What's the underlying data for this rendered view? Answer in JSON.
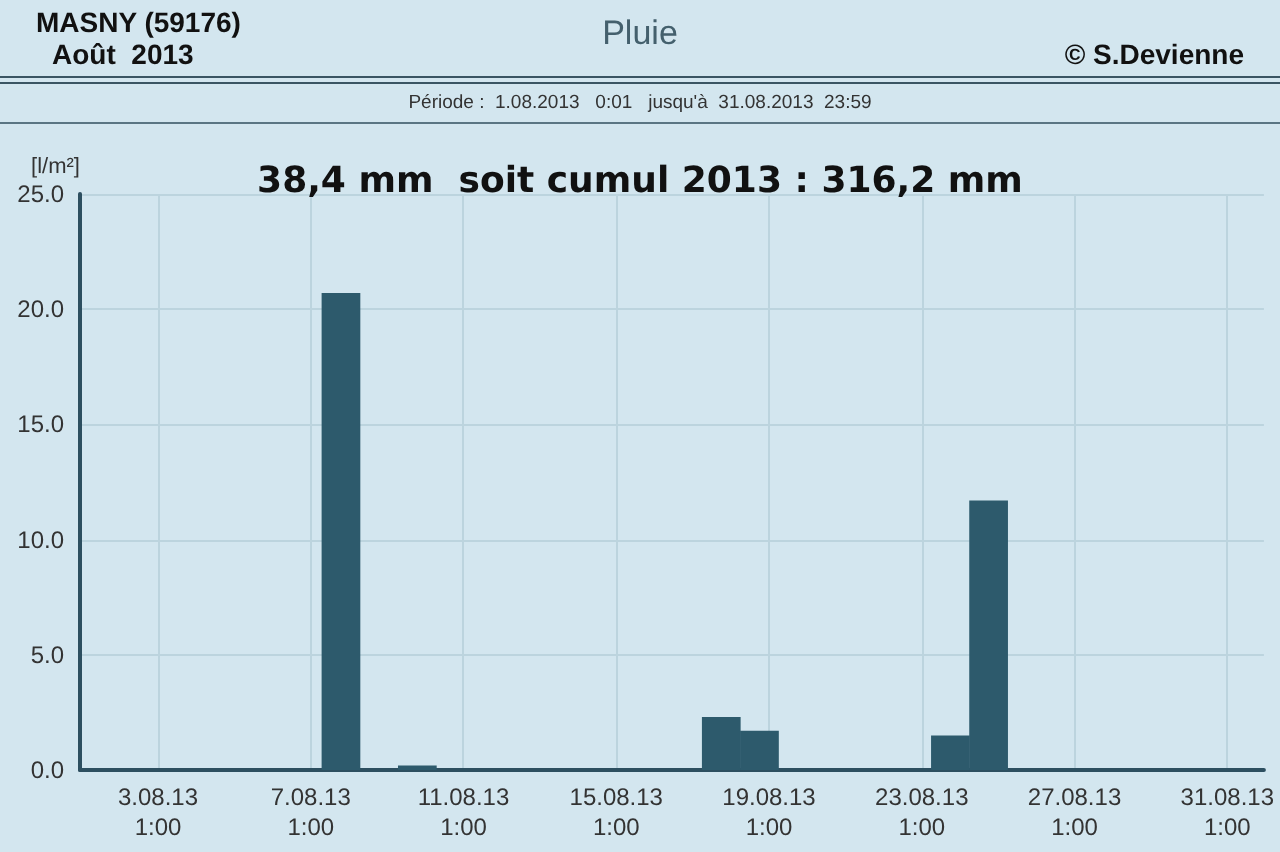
{
  "chart_data": {
    "type": "bar",
    "title": "Pluie",
    "annotations": [
      "MASNY (59176)",
      "Août  2013",
      "© S.Devienne",
      "Période :  1.08.2013   0:01   jusqu'à  31.08.2013  23:59",
      "38,4 mm  soit cumul 2013 : 316,2 mm"
    ],
    "ylabel": "[l/m²]",
    "x": [
      "2013-08-07T20:00",
      "2013-08-09T20:00",
      "2013-08-17T19:00",
      "2013-08-18T19:00",
      "2013-08-23T19:00",
      "2013-08-24T19:00"
    ],
    "values": [
      20.7,
      0.2,
      2.3,
      1.7,
      1.5,
      11.7
    ],
    "color": "#2d5a6c",
    "xlim": [
      "2013-08-01T00:00",
      "2013-09-01T00:00"
    ],
    "xticks": [
      {
        "value": "2013-08-03T01:00",
        "label": "3.08.13\n1:00"
      },
      {
        "value": "2013-08-07T01:00",
        "label": "7.08.13\n1:00"
      },
      {
        "value": "2013-08-11T01:00",
        "label": "11.08.13\n1:00"
      },
      {
        "value": "2013-08-15T01:00",
        "label": "15.08.13\n1:00"
      },
      {
        "value": "2013-08-19T01:00",
        "label": "19.08.13\n1:00"
      },
      {
        "value": "2013-08-23T01:00",
        "label": "23.08.13\n1:00"
      },
      {
        "value": "2013-08-27T01:00",
        "label": "27.08.13\n1:00"
      },
      {
        "value": "2013-08-31T01:00",
        "label": "31.08.13\n1:00"
      }
    ],
    "ylim": [
      0,
      25
    ],
    "yticks": [
      {
        "value": 0,
        "label": "0.0"
      },
      {
        "value": 5,
        "label": "5.0"
      },
      {
        "value": 10,
        "label": "10.0"
      },
      {
        "value": 15,
        "label": "15.0"
      },
      {
        "value": 20,
        "label": "20.0"
      },
      {
        "value": 25,
        "label": "25.0"
      }
    ],
    "grid": true
  }
}
